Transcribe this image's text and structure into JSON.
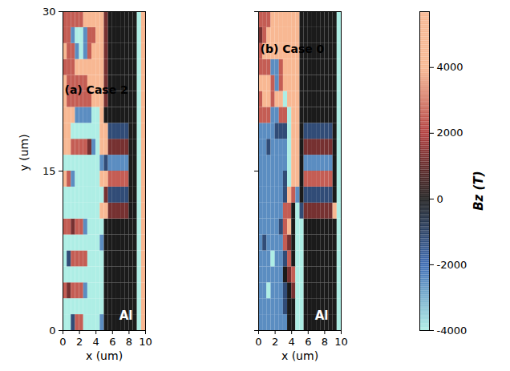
{
  "chart_data": [
    {
      "type": "heatmap",
      "title": "(a) Case 2",
      "annotations": [
        "Al"
      ],
      "x_label": "x (um)",
      "y_label": "y (um)",
      "xlim": [
        0,
        10
      ],
      "ylim": [
        0,
        30
      ],
      "xticks": [
        0,
        2,
        4,
        6,
        8,
        10
      ],
      "yticks": [
        0,
        15,
        30
      ],
      "x": [
        0.25,
        0.75,
        1.25,
        1.75,
        2.25,
        2.75,
        3.25,
        3.75,
        4.25,
        4.75,
        5.25,
        5.75,
        6.25,
        6.75,
        7.25,
        7.75,
        8.25,
        8.75,
        9.25,
        9.75
      ],
      "y": [
        0.75,
        2.25,
        3.75,
        5.25,
        6.75,
        8.25,
        9.75,
        11.25,
        12.75,
        14.25,
        15.75,
        17.25,
        18.75,
        20.25,
        21.75,
        23.25,
        24.75,
        26.25,
        27.75,
        29.25
      ],
      "z": [
        [
          -4500,
          -4500,
          -1200,
          2500,
          2500,
          -4500,
          -4500,
          -4500,
          -4500,
          -2500,
          0,
          0,
          0,
          0,
          0,
          0,
          0,
          0,
          -4500,
          4500
        ],
        [
          -4500,
          -4500,
          -4500,
          -4500,
          -4500,
          -4500,
          -4500,
          -4500,
          -4500,
          -4500,
          0,
          0,
          0,
          0,
          0,
          0,
          0,
          0,
          -4500,
          4500
        ],
        [
          2500,
          1200,
          2500,
          2500,
          2500,
          -2500,
          -4500,
          -4500,
          -4500,
          -4500,
          0,
          0,
          0,
          0,
          0,
          0,
          0,
          0,
          -4500,
          4500
        ],
        [
          -4500,
          -4500,
          -4500,
          -4500,
          -4500,
          -4500,
          -4500,
          -4500,
          -4500,
          -4500,
          0,
          0,
          0,
          0,
          0,
          0,
          0,
          0,
          -4500,
          4500
        ],
        [
          -4500,
          -1200,
          2500,
          2500,
          2500,
          2500,
          -4500,
          -4500,
          -4500,
          -4500,
          0,
          0,
          0,
          0,
          0,
          0,
          0,
          0,
          -4500,
          4500
        ],
        [
          -4500,
          -4500,
          -4500,
          -4500,
          -4500,
          -4500,
          -4500,
          -4500,
          -4500,
          -2500,
          0,
          0,
          0,
          0,
          0,
          0,
          0,
          0,
          -4500,
          4500
        ],
        [
          2500,
          2500,
          1200,
          2500,
          2500,
          -2500,
          -4500,
          -4500,
          -4500,
          -4500,
          0,
          0,
          0,
          0,
          0,
          0,
          0,
          0,
          -4500,
          4500
        ],
        [
          -4500,
          -4500,
          -4500,
          -4500,
          -4500,
          -4500,
          -4500,
          -4500,
          -4500,
          4500,
          4500,
          1200,
          1200,
          1200,
          1200,
          1200,
          0,
          0,
          -4500,
          4500
        ],
        [
          -4500,
          -4500,
          -4500,
          -4500,
          -4500,
          -4500,
          -4500,
          -4500,
          -4500,
          -4500,
          1200,
          -1200,
          -1200,
          -1200,
          -1200,
          -1200,
          0,
          0,
          -4500,
          4500
        ],
        [
          4500,
          2500,
          -2500,
          -4500,
          -4500,
          -4500,
          -4500,
          -4500,
          -4500,
          4500,
          4500,
          2500,
          2500,
          2500,
          2500,
          2500,
          0,
          0,
          -4500,
          4500
        ],
        [
          -4500,
          -4500,
          -4500,
          -4500,
          -4500,
          -4500,
          -4500,
          -4500,
          -4500,
          -2500,
          -1200,
          -2500,
          -2500,
          -2500,
          -2500,
          -2500,
          0,
          0,
          -4500,
          4500
        ],
        [
          4500,
          4500,
          2500,
          2500,
          2500,
          2500,
          1200,
          -2500,
          -4500,
          4500,
          4500,
          1200,
          1200,
          1200,
          1200,
          1200,
          0,
          0,
          -4500,
          4500
        ],
        [
          4500,
          4500,
          -4500,
          -4500,
          -4500,
          -4500,
          -4500,
          -4500,
          -4500,
          4500,
          4500,
          -1200,
          -1200,
          -1200,
          -1200,
          -1200,
          0,
          0,
          -4500,
          4500
        ],
        [
          4500,
          4500,
          4500,
          -2500,
          -2500,
          -2500,
          -2500,
          -4500,
          -4500,
          4500,
          0,
          0,
          0,
          0,
          0,
          0,
          0,
          0,
          -4500,
          4500
        ],
        [
          4500,
          2500,
          2500,
          2500,
          2500,
          2500,
          2500,
          4500,
          4500,
          4500,
          1200,
          0,
          0,
          0,
          0,
          0,
          0,
          0,
          -4500,
          4500
        ],
        [
          4500,
          2500,
          2500,
          2500,
          2500,
          2500,
          4500,
          4500,
          4500,
          4500,
          1200,
          0,
          0,
          0,
          0,
          0,
          0,
          0,
          -4500,
          4500
        ],
        [
          2500,
          2500,
          2500,
          4500,
          4500,
          4500,
          4500,
          4500,
          4500,
          4500,
          1200,
          0,
          0,
          0,
          0,
          0,
          0,
          0,
          -4500,
          4500
        ],
        [
          4500,
          2500,
          2500,
          -2500,
          -4500,
          -2500,
          2500,
          4500,
          4500,
          4500,
          1200,
          0,
          0,
          0,
          0,
          0,
          0,
          0,
          -4500,
          4500
        ],
        [
          2500,
          2500,
          -2500,
          -4500,
          -4500,
          -2500,
          2500,
          2500,
          4500,
          4500,
          1200,
          0,
          0,
          0,
          0,
          0,
          0,
          0,
          -4500,
          4500
        ],
        [
          2500,
          2500,
          2500,
          2500,
          2500,
          4500,
          4500,
          4500,
          4500,
          4500,
          1200,
          0,
          0,
          0,
          0,
          0,
          0,
          0,
          -4500,
          4500
        ]
      ]
    },
    {
      "type": "heatmap",
      "title": "(b) Case 0",
      "annotations": [
        "Al"
      ],
      "x_label": "x (um)",
      "tick_labels": "x",
      "xlim": [
        0,
        10
      ],
      "ylim": [
        0,
        30
      ],
      "xticks": [
        0,
        2,
        4,
        6,
        8,
        10
      ],
      "yticks": [
        0,
        15,
        30
      ],
      "x": [
        0.25,
        0.75,
        1.25,
        1.75,
        2.25,
        2.75,
        3.25,
        3.75,
        4.25,
        4.75,
        5.25,
        5.75,
        6.25,
        6.75,
        7.25,
        7.75,
        8.25,
        8.75,
        9.25,
        9.75
      ],
      "y": [
        0.75,
        2.25,
        3.75,
        5.25,
        6.75,
        8.25,
        9.75,
        11.25,
        12.75,
        14.25,
        15.75,
        17.25,
        18.75,
        20.25,
        21.75,
        23.25,
        24.75,
        26.25,
        27.75,
        29.25
      ],
      "z": [
        [
          -2500,
          -2500,
          -2500,
          -2500,
          -2500,
          -2500,
          -2500,
          0,
          0,
          -4500,
          -4500,
          0,
          0,
          0,
          0,
          0,
          0,
          0,
          0,
          -4500
        ],
        [
          -2500,
          -2500,
          -2500,
          -2500,
          -2500,
          -2500,
          -1200,
          0,
          0,
          -4500,
          -4500,
          0,
          0,
          0,
          0,
          0,
          0,
          0,
          0,
          -4500
        ],
        [
          -2500,
          -2500,
          -4500,
          -2500,
          -2500,
          -2500,
          -1200,
          0,
          1200,
          -4500,
          -4500,
          0,
          0,
          0,
          0,
          0,
          0,
          0,
          0,
          -4500
        ],
        [
          -2500,
          -2500,
          -2500,
          -2500,
          -2500,
          -2500,
          0,
          1200,
          2500,
          -4500,
          -4500,
          0,
          0,
          0,
          0,
          0,
          0,
          0,
          0,
          -4500
        ],
        [
          -2500,
          -2500,
          -2500,
          -4500,
          -2500,
          -2500,
          -1200,
          2500,
          0,
          -4500,
          -4500,
          0,
          0,
          0,
          0,
          0,
          0,
          0,
          0,
          -4500
        ],
        [
          -2500,
          -1200,
          -2500,
          -2500,
          -2500,
          -2500,
          2500,
          1200,
          0,
          -4500,
          -4500,
          0,
          0,
          0,
          0,
          0,
          0,
          0,
          0,
          -4500
        ],
        [
          -2500,
          -2500,
          -2500,
          -2500,
          -2500,
          -1200,
          2500,
          4500,
          0,
          -4500,
          -4500,
          0,
          0,
          0,
          0,
          0,
          0,
          0,
          0,
          -4500
        ],
        [
          -2500,
          -2500,
          -2500,
          -2500,
          -2500,
          -2500,
          2500,
          2500,
          0,
          -4500,
          -1200,
          1200,
          1200,
          1200,
          1200,
          1200,
          1200,
          1200,
          4500,
          -4500
        ],
        [
          -2500,
          -2500,
          -2500,
          -2500,
          -2500,
          -2500,
          -1200,
          4500,
          2500,
          -2500,
          0,
          -1200,
          -1200,
          -1200,
          -1200,
          -1200,
          -1200,
          -1200,
          0,
          -4500
        ],
        [
          -2500,
          -2500,
          -2500,
          -2500,
          -2500,
          -2500,
          -1200,
          -4500,
          4500,
          4500,
          0,
          2500,
          2500,
          2500,
          2500,
          2500,
          2500,
          2500,
          0,
          -4500
        ],
        [
          -2500,
          -2500,
          -2500,
          -2500,
          -2500,
          -2500,
          -2500,
          -4500,
          4500,
          4500,
          0,
          -2500,
          -2500,
          -2500,
          -2500,
          -2500,
          -2500,
          -2500,
          0,
          -4500
        ],
        [
          -2500,
          -2500,
          -1200,
          -2500,
          -2500,
          -2500,
          -2500,
          -4500,
          4500,
          4500,
          0,
          1200,
          1200,
          1200,
          1200,
          1200,
          1200,
          1200,
          0,
          -4500
        ],
        [
          -2500,
          -2500,
          -2500,
          -2500,
          -1200,
          -1200,
          -1200,
          -4500,
          4500,
          4500,
          0,
          -1200,
          -1200,
          -1200,
          -1200,
          -1200,
          -1200,
          -1200,
          0,
          -4500
        ],
        [
          2500,
          2500,
          2500,
          -2500,
          -2500,
          2500,
          2500,
          -4500,
          4500,
          4500,
          0,
          0,
          0,
          0,
          0,
          0,
          0,
          0,
          0,
          -4500
        ],
        [
          2500,
          4500,
          4500,
          2500,
          4500,
          4500,
          -4500,
          4500,
          4500,
          4500,
          0,
          0,
          0,
          0,
          0,
          0,
          0,
          0,
          0,
          -4500
        ],
        [
          4500,
          4500,
          4500,
          2500,
          -2500,
          2500,
          4500,
          4500,
          4500,
          4500,
          0,
          0,
          0,
          0,
          0,
          0,
          0,
          0,
          0,
          -4500
        ],
        [
          2500,
          2500,
          2500,
          -2500,
          -2500,
          2500,
          4500,
          4500,
          4500,
          4500,
          0,
          0,
          0,
          0,
          0,
          0,
          0,
          0,
          0,
          -4500
        ],
        [
          2500,
          4500,
          4500,
          4500,
          4500,
          4500,
          4500,
          4500,
          4500,
          4500,
          0,
          0,
          0,
          0,
          0,
          0,
          0,
          0,
          0,
          -4500
        ],
        [
          1200,
          2500,
          4500,
          4500,
          4500,
          4500,
          4500,
          4500,
          4500,
          4500,
          0,
          0,
          0,
          0,
          0,
          0,
          0,
          0,
          0,
          -4500
        ],
        [
          2500,
          2500,
          2500,
          4500,
          4500,
          4500,
          4500,
          4500,
          4500,
          4500,
          0,
          0,
          0,
          0,
          0,
          0,
          0,
          0,
          0,
          -4500
        ]
      ]
    }
  ],
  "colorbar": {
    "label": "Bz (T)",
    "range": [
      -4000,
      5700
    ],
    "ticks": [
      -4000,
      -2000,
      0,
      2000,
      4000
    ]
  }
}
